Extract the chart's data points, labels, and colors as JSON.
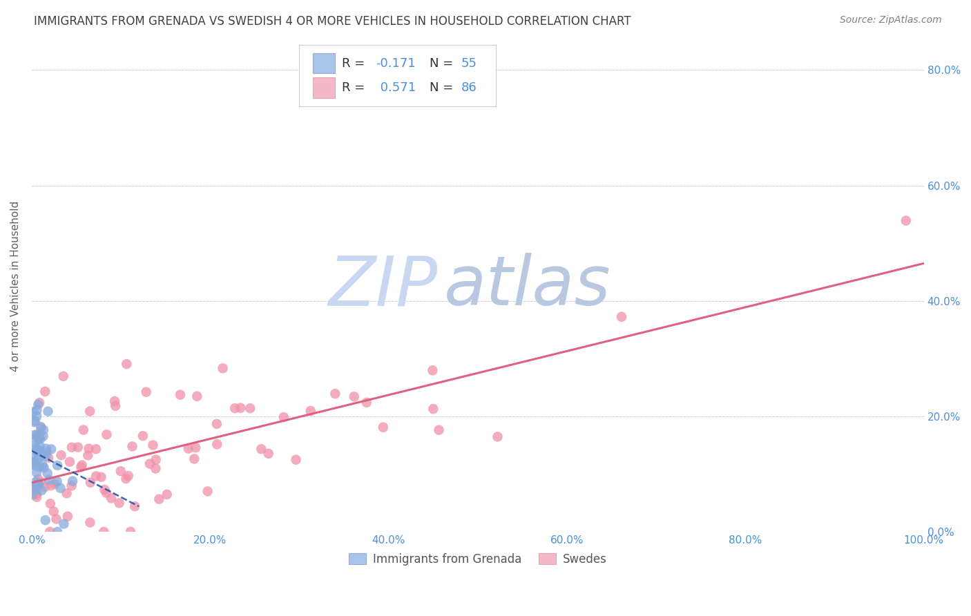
{
  "title": "IMMIGRANTS FROM GRENADA VS SWEDISH 4 OR MORE VEHICLES IN HOUSEHOLD CORRELATION CHART",
  "source": "Source: ZipAtlas.com",
  "xlabel_blue": "Immigrants from Grenada",
  "xlabel_pink": "Swedes",
  "ylabel": "4 or more Vehicles in Household",
  "R_blue": -0.171,
  "N_blue": 55,
  "R_pink": 0.571,
  "N_pink": 86,
  "blue_legend_color": "#a8c4e8",
  "pink_legend_color": "#f4b8c8",
  "blue_line_color": "#2255aa",
  "pink_line_color": "#e06080",
  "blue_scatter_color": "#88aadd",
  "pink_scatter_color": "#f090a8",
  "watermark_zip_color": "#c8d8f0",
  "watermark_atlas_color": "#b8c8e0",
  "title_color": "#404040",
  "source_color": "#808080",
  "axis_tick_color": "#4a90d9",
  "ylabel_color": "#606060",
  "grid_color": "#cccccc",
  "legend_edge_color": "#cccccc",
  "xlim": [
    0.0,
    1.0
  ],
  "ylim": [
    0.0,
    0.85
  ],
  "x_ticks": [
    0.0,
    0.2,
    0.4,
    0.6,
    0.8,
    1.0
  ],
  "y_ticks": [
    0.0,
    0.2,
    0.4,
    0.6,
    0.8
  ],
  "pink_intercept": 0.085,
  "pink_slope": 0.38,
  "blue_intercept": 0.14,
  "blue_slope": -0.8
}
